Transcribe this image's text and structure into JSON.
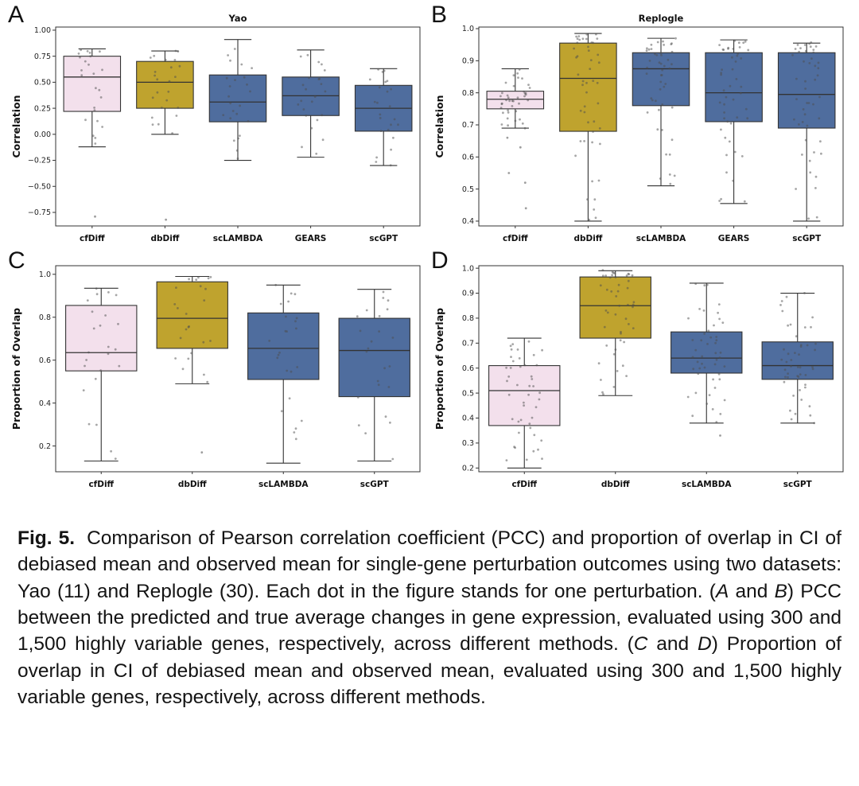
{
  "style": {
    "background": "#ffffff",
    "edge_color": "#333333",
    "point_color": "#4d4d4d",
    "box_colors": {
      "cfDiff": "#f3e0ec",
      "dbDiff": "#bfa32e",
      "default": "#4f6d9e"
    }
  },
  "caption": {
    "label": "Fig. 5.",
    "segments": [
      {
        "text": "Comparison of Pearson correlation coefficient (PCC) and proportion of overlap in CI of debiased mean and observed mean for single-gene perturbation outcomes using two datasets: Yao (11) and Replogle (30). Each dot in the figure stands for one perturbation. (",
        "style": "normal"
      },
      {
        "text": "A",
        "style": "italic"
      },
      {
        "text": " and ",
        "style": "normal"
      },
      {
        "text": "B",
        "style": "italic"
      },
      {
        "text": ") PCC between the predicted and true average changes in gene expression, evaluated using 300 and 1,500 highly variable genes, respectively, across different methods. (",
        "style": "normal"
      },
      {
        "text": "C",
        "style": "italic"
      },
      {
        "text": " and ",
        "style": "normal"
      },
      {
        "text": "D",
        "style": "italic"
      },
      {
        "text": ") Proportion of overlap in CI of debiased mean and observed mean, evaluated using 300 and 1,500 highly variable genes, respectively, across different methods.",
        "style": "normal"
      }
    ]
  },
  "chart_data": [
    {
      "id": "A",
      "panel_label": "A",
      "type": "box",
      "title": "Yao",
      "ylabel": "Correlation",
      "ylim": [
        -0.88,
        1.03
      ],
      "legend": "none",
      "grid": false,
      "yticks": [
        {
          "v": 1.0,
          "label": "1.00"
        },
        {
          "v": 0.75,
          "label": "0.75"
        },
        {
          "v": 0.5,
          "label": "0.50"
        },
        {
          "v": 0.25,
          "label": "0.25"
        },
        {
          "v": 0.0,
          "label": "0.00"
        },
        {
          "v": -0.25,
          "label": "−0.25"
        },
        {
          "v": -0.5,
          "label": "−0.50"
        },
        {
          "v": -0.75,
          "label": "−0.75"
        }
      ],
      "categories": [
        "cfDiff",
        "dbDiff",
        "scLAMBDA",
        "GEARS",
        "scGPT"
      ],
      "boxes": [
        {
          "method": "cfDiff",
          "color": "#f3e0ec",
          "whislo": -0.12,
          "q1": 0.22,
          "med": 0.55,
          "q3": 0.75,
          "whishi": 0.82,
          "n_points": 24,
          "outliers": [
            -0.79
          ]
        },
        {
          "method": "dbDiff",
          "color": "#bfa32e",
          "whislo": 0.0,
          "q1": 0.25,
          "med": 0.5,
          "q3": 0.7,
          "whishi": 0.8,
          "n_points": 24,
          "outliers": [
            -0.82
          ]
        },
        {
          "method": "scLAMBDA",
          "color": "#4f6d9e",
          "whislo": -0.25,
          "q1": 0.12,
          "med": 0.31,
          "q3": 0.57,
          "whishi": 0.91,
          "n_points": 24,
          "outliers": []
        },
        {
          "method": "GEARS",
          "color": "#4f6d9e",
          "whislo": -0.22,
          "q1": 0.18,
          "med": 0.37,
          "q3": 0.55,
          "whishi": 0.81,
          "n_points": 24,
          "outliers": []
        },
        {
          "method": "scGPT",
          "color": "#4f6d9e",
          "whislo": -0.3,
          "q1": 0.03,
          "med": 0.25,
          "q3": 0.47,
          "whishi": 0.63,
          "n_points": 24,
          "outliers": []
        }
      ]
    },
    {
      "id": "B",
      "panel_label": "B",
      "type": "box",
      "title": "Replogle",
      "ylabel": "Correlation",
      "ylim": [
        0.385,
        1.005
      ],
      "legend": "none",
      "grid": false,
      "yticks": [
        {
          "v": 1.0,
          "label": "1.0"
        },
        {
          "v": 0.9,
          "label": "0.9"
        },
        {
          "v": 0.8,
          "label": "0.8"
        },
        {
          "v": 0.7,
          "label": "0.7"
        },
        {
          "v": 0.6,
          "label": "0.6"
        },
        {
          "v": 0.5,
          "label": "0.5"
        },
        {
          "v": 0.4,
          "label": "0.4"
        }
      ],
      "categories": [
        "cfDiff",
        "dbDiff",
        "scLAMBDA",
        "GEARS",
        "scGPT"
      ],
      "boxes": [
        {
          "method": "cfDiff",
          "color": "#f3e0ec",
          "whislo": 0.69,
          "q1": 0.75,
          "med": 0.78,
          "q3": 0.805,
          "whishi": 0.875,
          "n_points": 40,
          "outliers": [
            0.66,
            0.63,
            0.55,
            0.52,
            0.44
          ]
        },
        {
          "method": "dbDiff",
          "color": "#bfa32e",
          "whislo": 0.4,
          "q1": 0.68,
          "med": 0.845,
          "q3": 0.955,
          "whishi": 0.985,
          "n_points": 48,
          "outliers": []
        },
        {
          "method": "scLAMBDA",
          "color": "#4f6d9e",
          "whislo": 0.51,
          "q1": 0.76,
          "med": 0.875,
          "q3": 0.925,
          "whishi": 0.97,
          "n_points": 48,
          "outliers": []
        },
        {
          "method": "GEARS",
          "color": "#4f6d9e",
          "whislo": 0.455,
          "q1": 0.71,
          "med": 0.8,
          "q3": 0.925,
          "whishi": 0.965,
          "n_points": 48,
          "outliers": []
        },
        {
          "method": "scGPT",
          "color": "#4f6d9e",
          "whislo": 0.4,
          "q1": 0.69,
          "med": 0.795,
          "q3": 0.925,
          "whishi": 0.955,
          "n_points": 48,
          "outliers": []
        }
      ]
    },
    {
      "id": "C",
      "panel_label": "C",
      "type": "box",
      "title": "",
      "ylabel": "Proportion of Overlap",
      "ylim": [
        0.08,
        1.04
      ],
      "legend": "none",
      "grid": false,
      "yticks": [
        {
          "v": 1.0,
          "label": "1.0"
        },
        {
          "v": 0.8,
          "label": "0.8"
        },
        {
          "v": 0.6,
          "label": "0.6"
        },
        {
          "v": 0.4,
          "label": "0.4"
        },
        {
          "v": 0.2,
          "label": "0.2"
        }
      ],
      "categories": [
        "cfDiff",
        "dbDiff",
        "scLAMBDA",
        "scGPT"
      ],
      "boxes": [
        {
          "method": "cfDiff",
          "color": "#f3e0ec",
          "whislo": 0.13,
          "q1": 0.55,
          "med": 0.635,
          "q3": 0.855,
          "whishi": 0.935,
          "n_points": 24,
          "outliers": []
        },
        {
          "method": "dbDiff",
          "color": "#bfa32e",
          "whislo": 0.49,
          "q1": 0.655,
          "med": 0.795,
          "q3": 0.965,
          "whishi": 0.99,
          "n_points": 24,
          "outliers": [
            0.17
          ]
        },
        {
          "method": "scLAMBDA",
          "color": "#4f6d9e",
          "whislo": 0.12,
          "q1": 0.51,
          "med": 0.655,
          "q3": 0.82,
          "whishi": 0.95,
          "n_points": 24,
          "outliers": []
        },
        {
          "method": "scGPT",
          "color": "#4f6d9e",
          "whislo": 0.13,
          "q1": 0.43,
          "med": 0.645,
          "q3": 0.795,
          "whishi": 0.93,
          "n_points": 24,
          "outliers": []
        }
      ]
    },
    {
      "id": "D",
      "panel_label": "D",
      "type": "box",
      "title": "",
      "ylabel": "Proportion of Overlap",
      "ylim": [
        0.185,
        1.01
      ],
      "legend": "none",
      "grid": false,
      "yticks": [
        {
          "v": 1.0,
          "label": "1.0"
        },
        {
          "v": 0.9,
          "label": "0.9"
        },
        {
          "v": 0.8,
          "label": "0.8"
        },
        {
          "v": 0.7,
          "label": "0.7"
        },
        {
          "v": 0.6,
          "label": "0.6"
        },
        {
          "v": 0.5,
          "label": "0.5"
        },
        {
          "v": 0.4,
          "label": "0.4"
        },
        {
          "v": 0.3,
          "label": "0.3"
        },
        {
          "v": 0.2,
          "label": "0.2"
        }
      ],
      "categories": [
        "cfDiff",
        "dbDiff",
        "scLAMBDA",
        "scGPT"
      ],
      "boxes": [
        {
          "method": "cfDiff",
          "color": "#f3e0ec",
          "whislo": 0.2,
          "q1": 0.37,
          "med": 0.51,
          "q3": 0.61,
          "whishi": 0.72,
          "n_points": 45,
          "outliers": []
        },
        {
          "method": "dbDiff",
          "color": "#bfa32e",
          "whislo": 0.49,
          "q1": 0.72,
          "med": 0.85,
          "q3": 0.965,
          "whishi": 0.99,
          "n_points": 48,
          "outliers": []
        },
        {
          "method": "scLAMBDA",
          "color": "#4f6d9e",
          "whislo": 0.38,
          "q1": 0.58,
          "med": 0.64,
          "q3": 0.745,
          "whishi": 0.94,
          "n_points": 48,
          "outliers": [
            0.33
          ]
        },
        {
          "method": "scGPT",
          "color": "#4f6d9e",
          "whislo": 0.38,
          "q1": 0.555,
          "med": 0.61,
          "q3": 0.705,
          "whishi": 0.9,
          "n_points": 48,
          "outliers": []
        }
      ]
    }
  ]
}
